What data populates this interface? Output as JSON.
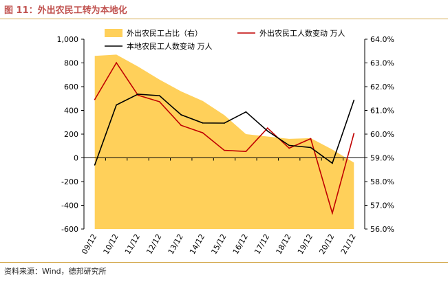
{
  "figure_title": "图 11：外出农民工转为本地化",
  "source": "资料来源：Wind，德邦研究所",
  "colors": {
    "area": "#ffd05a",
    "red_line": "#c00000",
    "black_line": "#000000",
    "title": "#c0504d",
    "rule": "#d4a94d"
  },
  "chart_data": {
    "type": "line",
    "categories": [
      "09/12",
      "10/12",
      "11/12",
      "12/12",
      "13/12",
      "14/12",
      "15/12",
      "16/12",
      "17/12",
      "18/12",
      "19/12",
      "20/12",
      "21/12"
    ],
    "series": [
      {
        "name": "外出农民工占比（右）",
        "kind": "area",
        "axis": "right",
        "values": [
          63.3,
          63.35,
          62.85,
          62.3,
          61.8,
          61.4,
          60.8,
          60.0,
          59.9,
          59.8,
          59.83,
          59.35,
          58.8
        ]
      },
      {
        "name": "外出农民工人数变动  万人",
        "kind": "line",
        "axis": "left",
        "color": "#c00000",
        "values": [
          492,
          802,
          528,
          473,
          274,
          211,
          63,
          54,
          251,
          82,
          162,
          -466,
          205
        ]
      },
      {
        "name": "本地农民工人数变动  万人",
        "kind": "line",
        "axis": "left",
        "color": "#000000",
        "values": [
          -60,
          446,
          537,
          524,
          363,
          294,
          293,
          387,
          226,
          105,
          87,
          -45,
          485
        ]
      }
    ],
    "y_left": {
      "min": -600,
      "max": 1000,
      "ticks": [
        1000,
        800,
        600,
        400,
        200,
        0,
        -200,
        -400,
        -600
      ],
      "tick_labels": [
        "1,000",
        "800",
        "600",
        "400",
        "200",
        "0",
        "-200",
        "-400",
        "-600"
      ]
    },
    "y_right": {
      "min": 56,
      "max": 64,
      "ticks": [
        64,
        63,
        62,
        61,
        60,
        59,
        58,
        57,
        56
      ],
      "tick_labels": [
        "64.0%",
        "63.0%",
        "62.0%",
        "61.0%",
        "60.0%",
        "59.0%",
        "58.0%",
        "57.0%",
        "56.0%"
      ]
    },
    "grid": false,
    "legend": "top-left"
  }
}
